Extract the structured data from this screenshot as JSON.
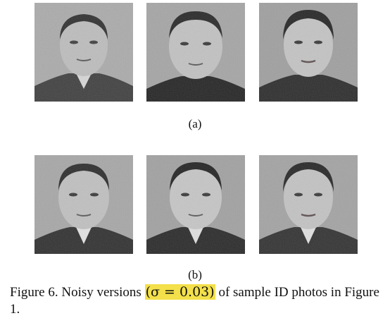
{
  "figure": {
    "row_a_label": "(a)",
    "row_b_label": "(b)",
    "caption_prefix": "Figure 6. Noisy versions ",
    "caption_highlight": "(σ = 0.03)",
    "caption_suffix": " of sample ID photos in Figure 1.",
    "highlight_color": "#f3e04a"
  }
}
